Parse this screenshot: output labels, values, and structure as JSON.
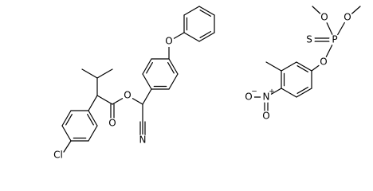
{
  "molecule_1": {
    "atom_labels": [
      "Cl",
      "O",
      "O",
      "O",
      "N"
    ]
  },
  "molecule_2": {
    "atom_labels": [
      "O",
      "O",
      "P",
      "S",
      "O",
      "N",
      "O",
      "O"
    ],
    "charges": [
      "+",
      "−"
    ]
  }
}
